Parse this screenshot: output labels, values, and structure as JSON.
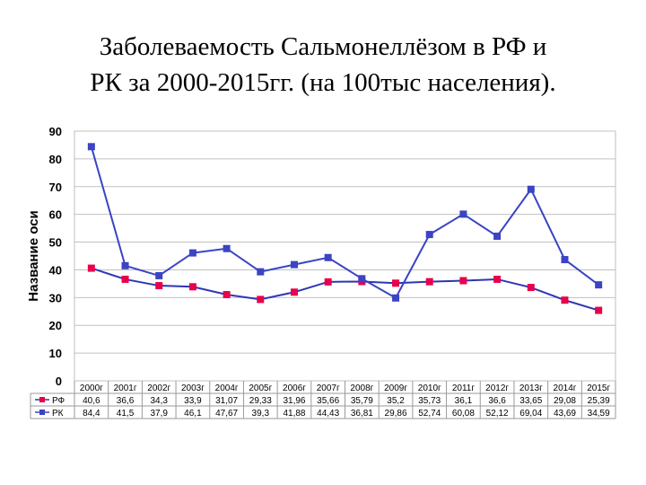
{
  "slide": {
    "title_line1": "Заболеваемость Сальмонеллёзом в РФ и",
    "title_line2": "РК за 2000-2015гг. (на 100тыс населения)."
  },
  "chart_data": {
    "type": "line",
    "title": "",
    "xlabel": "",
    "ylabel": "Название оси",
    "ylim": [
      0,
      90
    ],
    "yticks": [
      0,
      10,
      20,
      30,
      40,
      50,
      60,
      70,
      80,
      90
    ],
    "grid": true,
    "legend_placement": "data-table",
    "categories": [
      "2000г",
      "2001г",
      "2002г",
      "2003г",
      "2004г",
      "2005г",
      "2006г",
      "2007г",
      "2008г",
      "2009г",
      "2010г",
      "2011г",
      "2012г",
      "2013г",
      "2014г",
      "2015г"
    ],
    "series": [
      {
        "name": "РФ",
        "color": "#e8004a",
        "line_color": "#2f35b5",
        "marker": "square",
        "values": [
          40.6,
          36.6,
          34.3,
          33.9,
          31.07,
          29.33,
          31.96,
          35.66,
          35.79,
          35.2,
          35.73,
          36.1,
          36.6,
          33.65,
          29.08,
          25.39
        ],
        "labels": [
          "40,6",
          "36,6",
          "34,3",
          "33,9",
          "31,07",
          "29,33",
          "31,96",
          "35,66",
          "35,79",
          "35,2",
          "35,73",
          "36,1",
          "36,6",
          "33,65",
          "29,08",
          "25,39"
        ]
      },
      {
        "name": "РК",
        "color": "#3a44c4",
        "line_color": "#3a44c4",
        "marker": "square",
        "values": [
          84.4,
          41.5,
          37.9,
          46.1,
          47.67,
          39.3,
          41.88,
          44.43,
          36.81,
          29.86,
          52.74,
          60.08,
          52.12,
          69.04,
          43.69,
          34.59
        ],
        "labels": [
          "84,4",
          "41,5",
          "37,9",
          "46,1",
          "47,67",
          "39,3",
          "41,88",
          "44,43",
          "36,81",
          "29,86",
          "52,74",
          "60,08",
          "52,12",
          "69,04",
          "43,69",
          "34,59"
        ]
      }
    ]
  }
}
